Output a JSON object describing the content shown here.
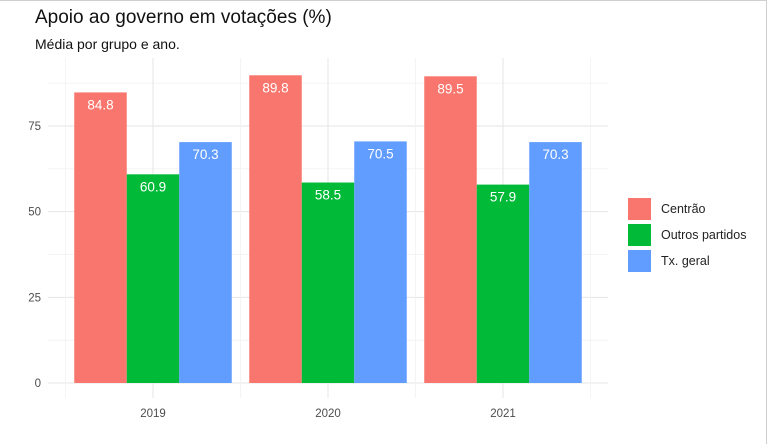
{
  "chart_data": {
    "type": "bar",
    "title": "Apoio ao governo em votações (%)",
    "subtitle": "Média por grupo e ano.",
    "xlabel": "",
    "ylabel": "",
    "categories": [
      "2019",
      "2020",
      "2021"
    ],
    "series": [
      {
        "name": "Centrão",
        "color": "#F8766D",
        "values": [
          84.8,
          89.8,
          89.5
        ]
      },
      {
        "name": "Outros partidos",
        "color": "#00BA38",
        "values": [
          60.9,
          58.5,
          57.9
        ]
      },
      {
        "name": "Tx. geral",
        "color": "#619CFF",
        "values": [
          70.3,
          70.5,
          70.3
        ]
      }
    ],
    "ylim": [
      0,
      95
    ],
    "yticks": [
      0,
      25,
      50,
      75
    ],
    "grid": true,
    "data_labels": true,
    "legend_position": "right"
  }
}
